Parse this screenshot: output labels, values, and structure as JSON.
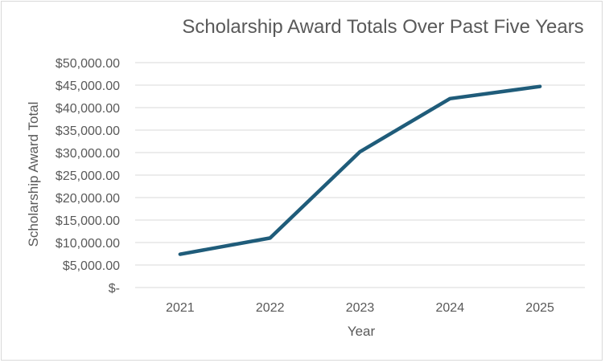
{
  "chart_data": {
    "type": "line",
    "title": "Scholarship Award Totals Over Past Five Years",
    "xlabel": "Year",
    "ylabel": "Scholarship Award Total",
    "categories": [
      "2021",
      "2022",
      "2023",
      "2024",
      "2025"
    ],
    "series": [
      {
        "values": [
          7400,
          11000,
          30200,
          42000,
          44700
        ],
        "color": "#1f5c7a"
      }
    ],
    "ylim": [
      0,
      50000
    ],
    "yticks": [
      {
        "value": 50000,
        "label": "$50,000.00"
      },
      {
        "value": 45000,
        "label": "$45,000.00"
      },
      {
        "value": 40000,
        "label": "$40,000.00"
      },
      {
        "value": 35000,
        "label": "$35,000.00"
      },
      {
        "value": 30000,
        "label": "$30,000.00"
      },
      {
        "value": 25000,
        "label": "$25,000.00"
      },
      {
        "value": 20000,
        "label": "$20,000.00"
      },
      {
        "value": 15000,
        "label": "$15,000.00"
      },
      {
        "value": 10000,
        "label": "$10,000.00"
      },
      {
        "value": 5000,
        "label": "$5,000.00"
      },
      {
        "value": 0,
        "label": "$-"
      }
    ],
    "grid": true,
    "legend": "none"
  }
}
